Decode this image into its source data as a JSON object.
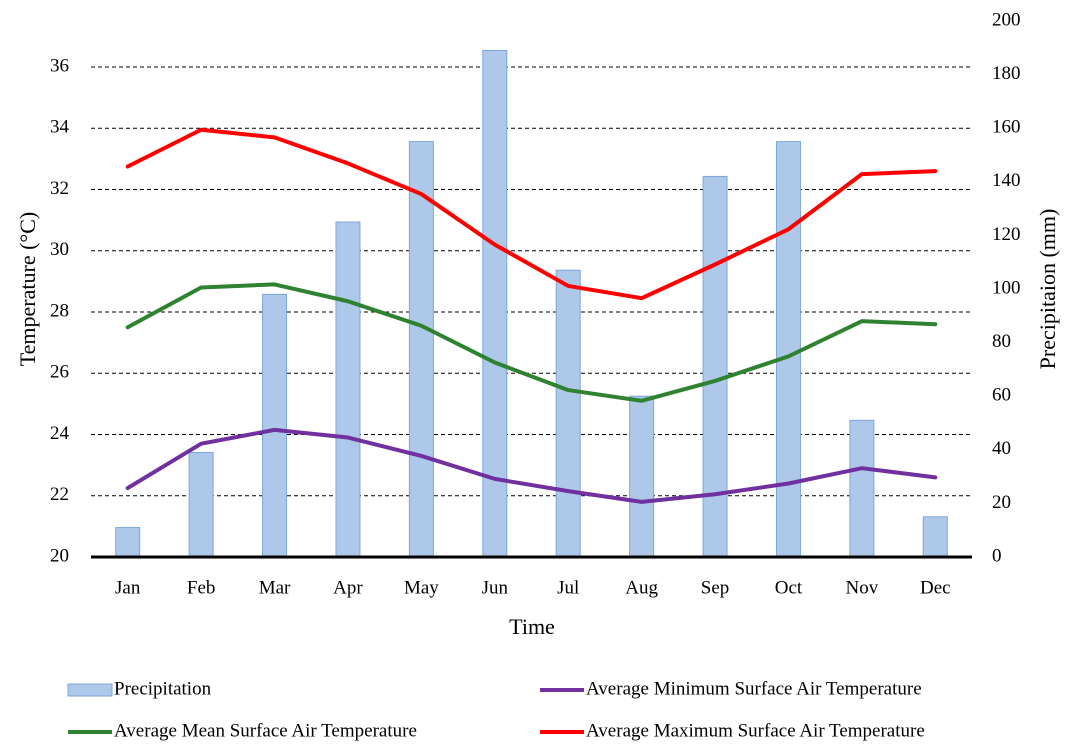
{
  "chart_data": {
    "type": "combo",
    "x_label": "Time",
    "y_label": "Temperature (°C)",
    "y2_label": "Precipitaion (mm)",
    "categories": [
      "Jan",
      "Feb",
      "Mar",
      "Apr",
      "May",
      "Jun",
      "Jul",
      "Aug",
      "Sep",
      "Oct",
      "Nov",
      "Dec"
    ],
    "series": [
      {
        "name": "Precipitation",
        "type": "bar",
        "axis": "y2",
        "color": "#aec8ea",
        "values": [
          11,
          39,
          98,
          125,
          155,
          189,
          107,
          60,
          142,
          155,
          51,
          15
        ]
      },
      {
        "name": "Average Minimum Surface Air Temperature",
        "type": "line",
        "color": "#7030a0",
        "values": [
          22.25,
          23.7,
          24.15,
          23.9,
          23.3,
          22.55,
          22.15,
          21.8,
          22.05,
          22.4,
          22.9,
          22.6
        ]
      },
      {
        "name": "Average Mean Surface Air Temperature",
        "type": "line",
        "color": "#2e8230",
        "values": [
          27.5,
          28.8,
          28.9,
          28.35,
          27.55,
          26.35,
          25.45,
          25.1,
          25.75,
          26.55,
          27.7,
          27.6
        ]
      },
      {
        "name": "Average Maximum Surface Air Temperature",
        "type": "line",
        "color": "#ff0000",
        "values": [
          32.75,
          33.95,
          33.7,
          32.85,
          31.85,
          30.2,
          28.85,
          28.45,
          29.55,
          30.7,
          32.5,
          32.6
        ]
      }
    ],
    "ylim": [
      20,
      37.5
    ],
    "yticks": [
      20,
      22,
      24,
      26,
      28,
      30,
      32,
      34,
      36
    ],
    "y2lim": [
      0,
      200
    ],
    "y2ticks": [
      0,
      20,
      40,
      60,
      80,
      100,
      120,
      140,
      160,
      180,
      200
    ],
    "grid": true
  }
}
